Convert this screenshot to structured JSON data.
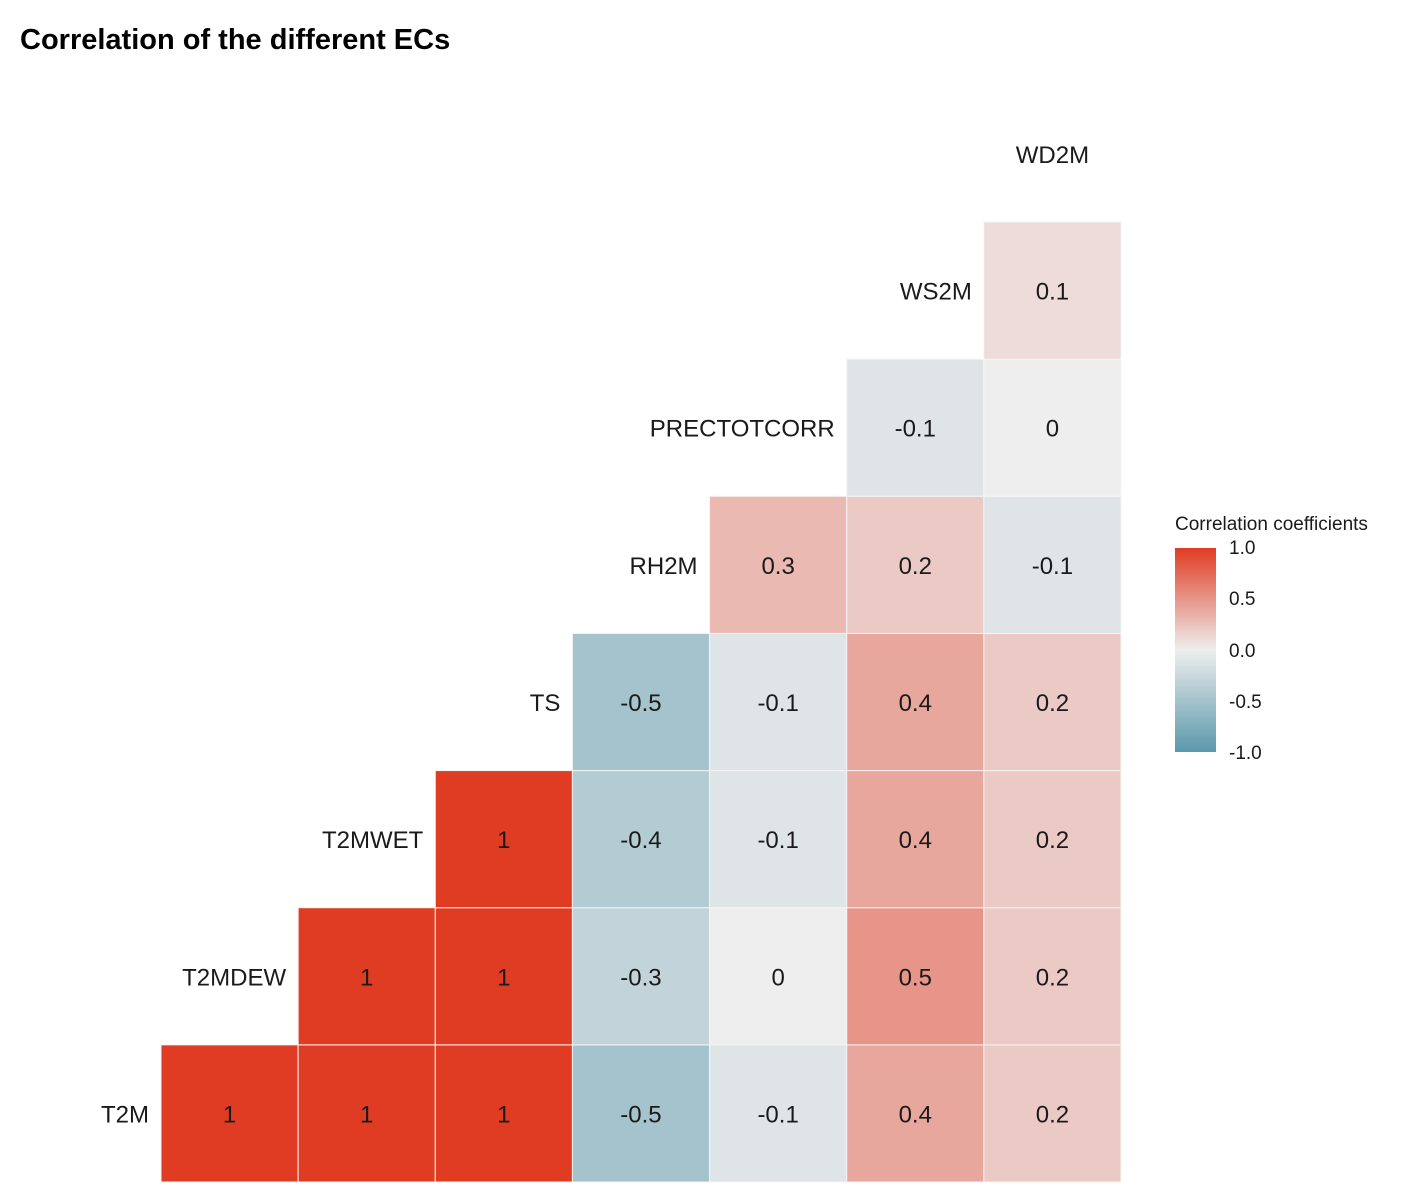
{
  "title": "Correlation of the different ECs",
  "chart_data": {
    "type": "heatmap",
    "title": "Correlation of the different ECs",
    "columns": [
      "T2MDEW",
      "T2MWET",
      "TS",
      "RH2M",
      "PRECTOTCORR",
      "WS2M",
      "WD2M"
    ],
    "rows": [
      "T2M",
      "T2MDEW",
      "T2MWET",
      "TS",
      "RH2M",
      "PRECTOTCORR",
      "WS2M"
    ],
    "values": [
      [
        1,
        1,
        1,
        -0.5,
        -0.1,
        0.4,
        0.2
      ],
      [
        null,
        1,
        1,
        -0.3,
        0,
        0.5,
        0.2
      ],
      [
        null,
        null,
        1,
        -0.4,
        -0.1,
        0.4,
        0.2
      ],
      [
        null,
        null,
        null,
        -0.5,
        -0.1,
        0.4,
        0.2
      ],
      [
        null,
        null,
        null,
        null,
        0.3,
        0.2,
        -0.1
      ],
      [
        null,
        null,
        null,
        null,
        null,
        -0.1,
        0
      ],
      [
        null,
        null,
        null,
        null,
        null,
        null,
        0.1
      ]
    ],
    "color_scale": {
      "low": "#5B98AC",
      "mid": "#EEEEEE",
      "high": "#E03C23",
      "limits": [
        -1,
        1
      ]
    },
    "legend": {
      "title": "Correlation coefficients",
      "ticks": [
        "1.0",
        "0.5",
        "0.0",
        "-0.5",
        "-1.0"
      ],
      "placement": "right"
    }
  }
}
